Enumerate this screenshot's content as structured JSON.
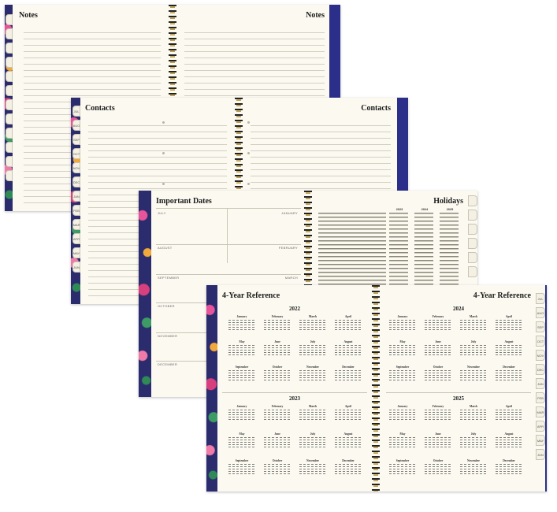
{
  "notes": {
    "left_title": "Notes",
    "right_title": "Notes"
  },
  "contacts": {
    "left_title": "Contacts",
    "right_title": "Contacts"
  },
  "important_dates": {
    "title": "Important Dates",
    "months_left": [
      "JULY",
      "AUGUST",
      "SEPTEMBER",
      "OCTOBER",
      "NOVEMBER",
      "DECEMBER"
    ],
    "months_right": [
      "JANUARY",
      "FEBRUARY",
      "MARCH"
    ]
  },
  "holidays": {
    "title": "Holidays",
    "years": [
      "2023",
      "2024",
      "2025"
    ]
  },
  "reference": {
    "left_title": "4-Year Reference",
    "right_title": "4-Year Reference",
    "years": [
      "2022",
      "2023",
      "2024",
      "2025"
    ],
    "months": [
      "January",
      "February",
      "March",
      "April",
      "May",
      "June",
      "July",
      "August",
      "September",
      "October",
      "November",
      "December"
    ]
  },
  "tab_labels": [
    "JUL",
    "AUG",
    "SEP",
    "OCT",
    "NOV",
    "DEC",
    "JAN",
    "FEB",
    "MAR",
    "APR",
    "MAY",
    "JUN"
  ],
  "colors": {
    "cover": "#2b2f8a",
    "paper": "#fbf9f0",
    "spiral": "#b0913d"
  }
}
